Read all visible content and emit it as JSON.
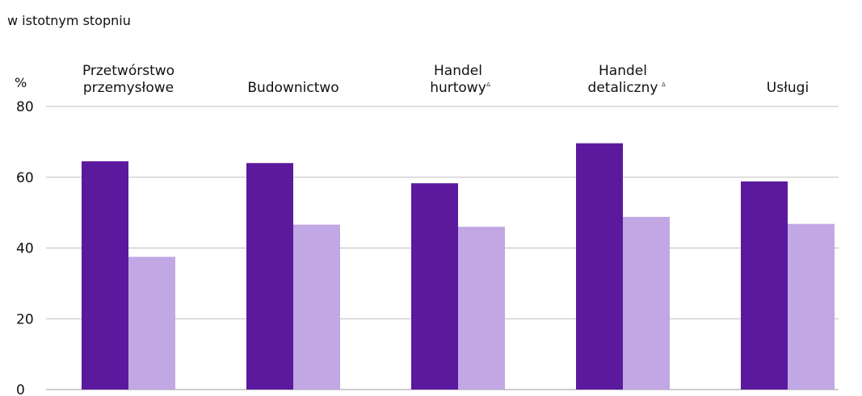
{
  "subtitle": "w istotnym stopniu",
  "y_unit": "%",
  "colors": {
    "series_dark": "#5b1a9e",
    "series_light": "#c1a7e3"
  },
  "chart_data": {
    "type": "bar",
    "title": "",
    "subtitle": "w istotnym stopniu",
    "xlabel": "",
    "ylabel": "%",
    "ylim": [
      0,
      80
    ],
    "yticks": [
      0,
      20,
      40,
      60,
      80
    ],
    "grid": true,
    "legend": "none",
    "categories": [
      [
        "Przetwórstwo",
        "przemysłowe"
      ],
      [
        "Budownictwo"
      ],
      [
        "Handel",
        "hurtowy"
      ],
      [
        "Handel",
        "detaliczny"
      ],
      [
        "Usługi"
      ]
    ],
    "category_marks": [
      "",
      "",
      "Δ",
      "Δ",
      ""
    ],
    "series": [
      {
        "values": [
          64.5,
          64.0,
          58.3,
          69.6,
          58.8
        ]
      },
      {
        "values": [
          37.5,
          46.6,
          46.0,
          48.8,
          46.8
        ]
      }
    ]
  }
}
